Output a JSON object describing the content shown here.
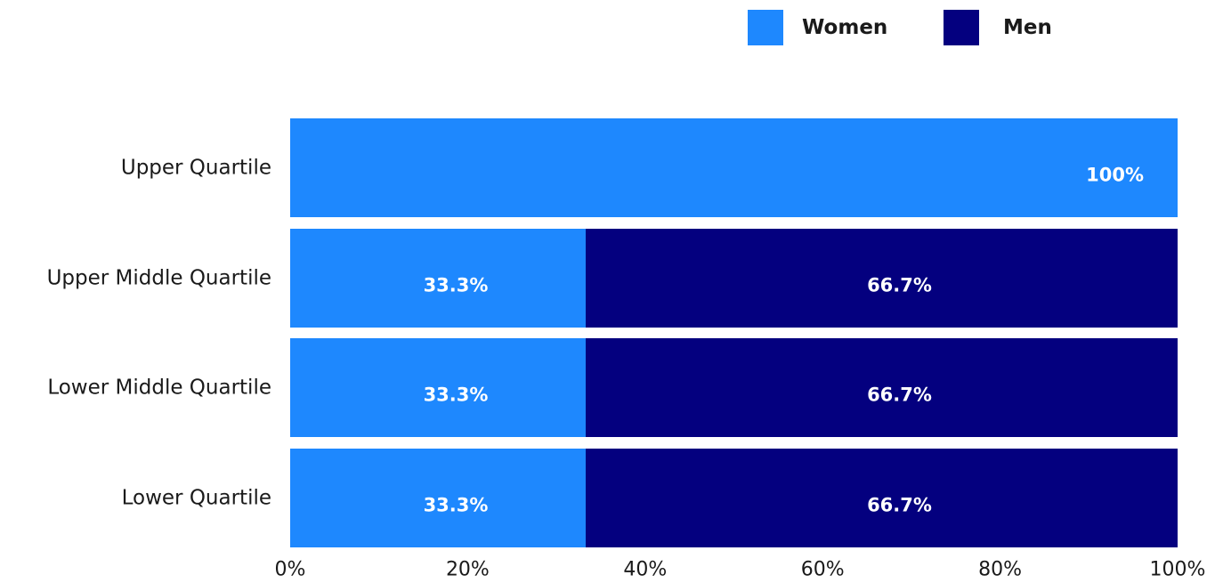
{
  "chart_data": {
    "type": "bar",
    "orientation": "horizontal",
    "stacked": true,
    "categories": [
      "Upper Quartile",
      "Upper Middle Quartile",
      "Lower Middle Quartile",
      "Lower Quartile"
    ],
    "series": [
      {
        "name": "Women",
        "color": "#1e88fe",
        "values": [
          100,
          33.3,
          33.3,
          33.3
        ],
        "labels": [
          "100%",
          "33.3%",
          "33.3%",
          "33.3%"
        ]
      },
      {
        "name": "Men",
        "color": "#04007f",
        "values": [
          0,
          66.7,
          66.7,
          66.7
        ],
        "labels": [
          "",
          "66.7%",
          "66.7%",
          "66.7%"
        ]
      }
    ],
    "xlim": [
      0,
      100
    ],
    "xticks": [
      "0%",
      "20%",
      "40%",
      "60%",
      "80%",
      "100%"
    ],
    "legend_position": "top-right",
    "grid": false,
    "title": "",
    "xlabel": "",
    "ylabel": ""
  }
}
